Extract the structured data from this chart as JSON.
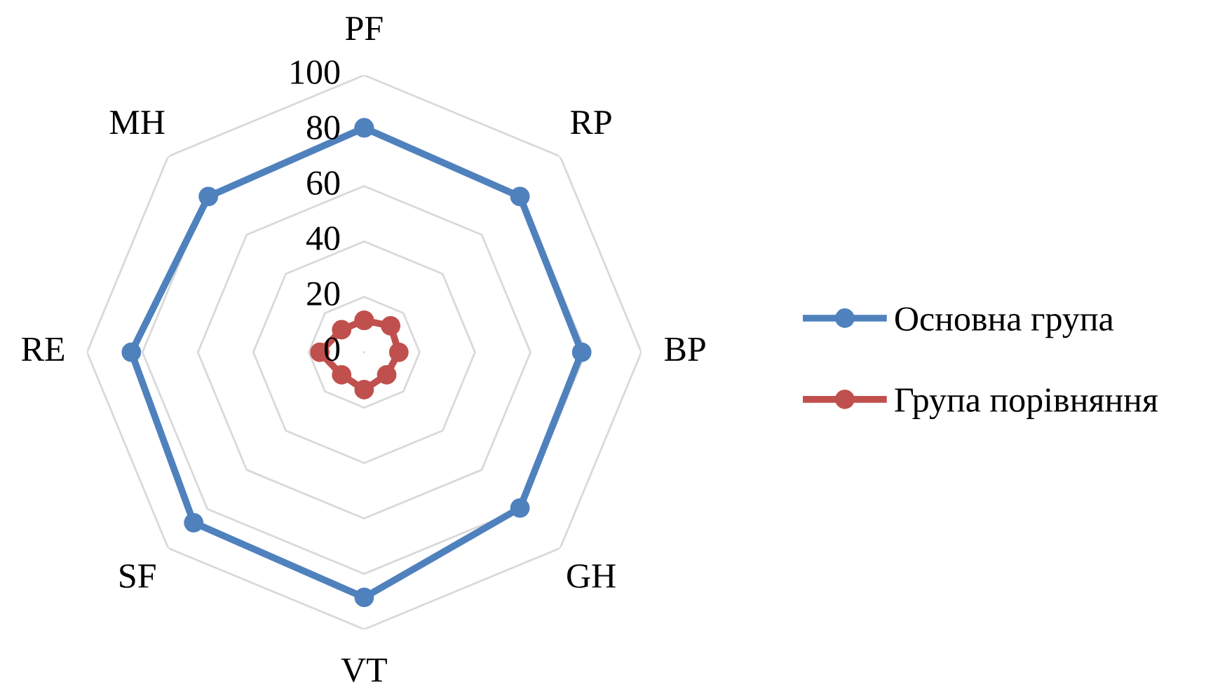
{
  "chart_data": {
    "type": "radar",
    "categories": [
      "PF",
      "RP",
      "BP",
      "GH",
      "VT",
      "SF",
      "RE",
      "MH"
    ],
    "series": [
      {
        "name": "Основна група",
        "color": "#4f81bd",
        "values": [
          81,
          79.5,
          78.5,
          79.5,
          88.5,
          87,
          84,
          79.5
        ]
      },
      {
        "name": "Група порівняння",
        "color": "#c0504d",
        "values": [
          11.5,
          13.5,
          12.5,
          11.5,
          13.5,
          11.5,
          16,
          11.5
        ]
      }
    ],
    "ylim": [
      0,
      100
    ],
    "yticks": [
      0,
      20,
      40,
      60,
      80,
      100
    ],
    "grid": true,
    "legend": "right",
    "marker": "circle",
    "line_style": "solid"
  }
}
